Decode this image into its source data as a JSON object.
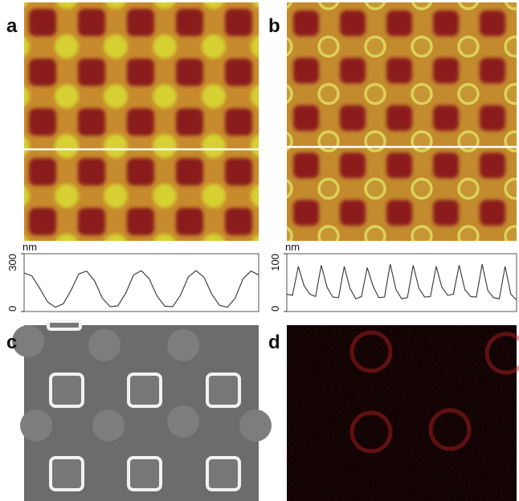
{
  "panels": [
    {
      "label": "a"
    },
    {
      "label": "b"
    },
    {
      "label": "c"
    },
    {
      "label": "d"
    }
  ],
  "chart_data": [
    {
      "type": "line",
      "y_label": "nm",
      "color": "#333333",
      "categories": [
        null,
        null,
        null,
        null,
        null,
        null,
        null,
        null,
        null,
        null,
        null,
        null,
        null,
        null,
        null,
        null,
        null,
        null,
        null,
        null,
        null,
        null,
        null,
        null,
        null,
        null,
        null,
        null,
        null,
        null,
        null
      ],
      "values": [
        200,
        185,
        120,
        50,
        22,
        40,
        110,
        195,
        210,
        160,
        70,
        25,
        30,
        95,
        190,
        212,
        170,
        80,
        28,
        25,
        85,
        180,
        212,
        178,
        90,
        32,
        22,
        70,
        170,
        210,
        190
      ],
      "ylim": [
        0,
        300
      ],
      "yticks": [
        0,
        300
      ]
    },
    {
      "type": "line",
      "y_label": "nm",
      "color": "#333333",
      "categories": [
        null,
        null,
        null,
        null,
        null,
        null,
        null,
        null,
        null,
        null,
        null,
        null,
        null,
        null,
        null,
        null,
        null,
        null,
        null,
        null,
        null,
        null,
        null,
        null,
        null,
        null,
        null,
        null,
        null,
        null,
        null,
        null,
        null,
        null,
        null,
        null,
        null,
        null,
        null,
        null,
        null
      ],
      "values": [
        30,
        28,
        78,
        45,
        30,
        26,
        80,
        42,
        25,
        24,
        78,
        40,
        22,
        26,
        76,
        44,
        24,
        25,
        82,
        38,
        22,
        24,
        80,
        40,
        25,
        26,
        78,
        42,
        28,
        30,
        80,
        38,
        26,
        25,
        82,
        36,
        24,
        22,
        78,
        30,
        20
      ],
      "ylim": [
        0,
        100
      ],
      "yticks": [
        0,
        100
      ]
    }
  ]
}
